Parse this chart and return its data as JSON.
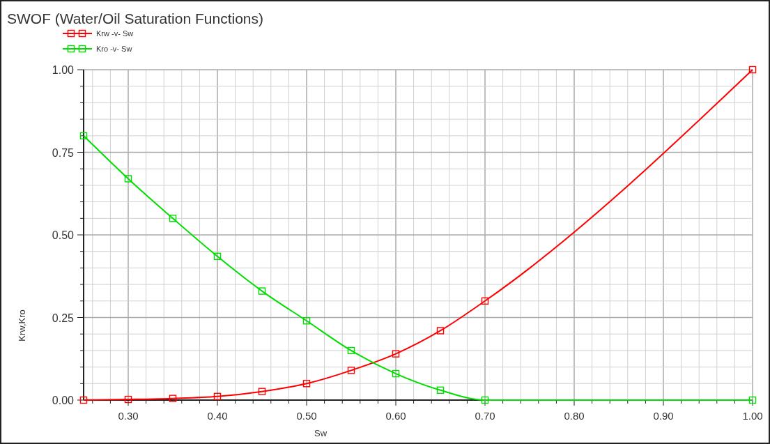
{
  "chart_data": {
    "type": "line",
    "title": "SWOF (Water/Oil Saturation Functions)",
    "xlabel": "Sw",
    "ylabel": "Krw,Kro",
    "x": [
      0.25,
      0.3,
      0.35,
      0.4,
      0.45,
      0.5,
      0.55,
      0.6,
      0.65,
      0.7,
      1.0
    ],
    "series": [
      {
        "name": "Krw -v- Sw",
        "color": "#ff0000",
        "values": [
          0,
          0.002,
          0.005,
          0.011,
          0.026,
          0.05,
          0.09,
          0.14,
          0.21,
          0.3,
          1.0
        ]
      },
      {
        "name": "Kro -v- Sw",
        "color": "#00dd00",
        "values": [
          0.8,
          0.67,
          0.55,
          0.435,
          0.33,
          0.24,
          0.15,
          0.08,
          0.03,
          0,
          0
        ]
      }
    ],
    "xlim": [
      0.25,
      1.0
    ],
    "xticks": [
      {
        "value": 0.26,
        "label": null
      },
      {
        "value": 0.28,
        "label": null
      },
      {
        "value": 0.3,
        "label": "0.30"
      },
      {
        "value": 0.32,
        "label": null
      },
      {
        "value": 0.34,
        "label": null
      },
      {
        "value": 0.36,
        "label": null
      },
      {
        "value": 0.38,
        "label": null
      },
      {
        "value": 0.4,
        "label": "0.40"
      },
      {
        "value": 0.42,
        "label": null
      },
      {
        "value": 0.44,
        "label": null
      },
      {
        "value": 0.46,
        "label": null
      },
      {
        "value": 0.48,
        "label": null
      },
      {
        "value": 0.5,
        "label": "0.50"
      },
      {
        "value": 0.52,
        "label": null
      },
      {
        "value": 0.54,
        "label": null
      },
      {
        "value": 0.56,
        "label": null
      },
      {
        "value": 0.58,
        "label": null
      },
      {
        "value": 0.6,
        "label": "0.60"
      },
      {
        "value": 0.62,
        "label": null
      },
      {
        "value": 0.64,
        "label": null
      },
      {
        "value": 0.66,
        "label": null
      },
      {
        "value": 0.68,
        "label": null
      },
      {
        "value": 0.7,
        "label": "0.70"
      },
      {
        "value": 0.72,
        "label": null
      },
      {
        "value": 0.74,
        "label": null
      },
      {
        "value": 0.76,
        "label": null
      },
      {
        "value": 0.78,
        "label": null
      },
      {
        "value": 0.8,
        "label": "0.80"
      },
      {
        "value": 0.82,
        "label": null
      },
      {
        "value": 0.84,
        "label": null
      },
      {
        "value": 0.86,
        "label": null
      },
      {
        "value": 0.88,
        "label": null
      },
      {
        "value": 0.9,
        "label": "0.90"
      },
      {
        "value": 0.92,
        "label": null
      },
      {
        "value": 0.94,
        "label": null
      },
      {
        "value": 0.96,
        "label": null
      },
      {
        "value": 0.98,
        "label": null
      },
      {
        "value": 1.0,
        "label": "1.00"
      }
    ],
    "ylim": [
      0,
      1.0
    ],
    "yticks": [
      {
        "value": 0,
        "label": "0.00"
      },
      {
        "value": 0.05,
        "label": null
      },
      {
        "value": 0.1,
        "label": null
      },
      {
        "value": 0.15,
        "label": null
      },
      {
        "value": 0.2,
        "label": null
      },
      {
        "value": 0.25,
        "label": "0.25"
      },
      {
        "value": 0.3,
        "label": null
      },
      {
        "value": 0.35,
        "label": null
      },
      {
        "value": 0.4,
        "label": null
      },
      {
        "value": 0.45,
        "label": null
      },
      {
        "value": 0.5,
        "label": "0.50"
      },
      {
        "value": 0.55,
        "label": null
      },
      {
        "value": 0.6,
        "label": null
      },
      {
        "value": 0.65,
        "label": null
      },
      {
        "value": 0.7,
        "label": null
      },
      {
        "value": 0.75,
        "label": "0.75"
      },
      {
        "value": 0.8,
        "label": null
      },
      {
        "value": 0.85,
        "label": null
      },
      {
        "value": 0.9,
        "label": null
      },
      {
        "value": 0.95,
        "label": null
      },
      {
        "value": 1.0,
        "label": "1.00"
      }
    ],
    "grid": true,
    "legend": "top left",
    "marker": "square",
    "line_style": "solid"
  }
}
